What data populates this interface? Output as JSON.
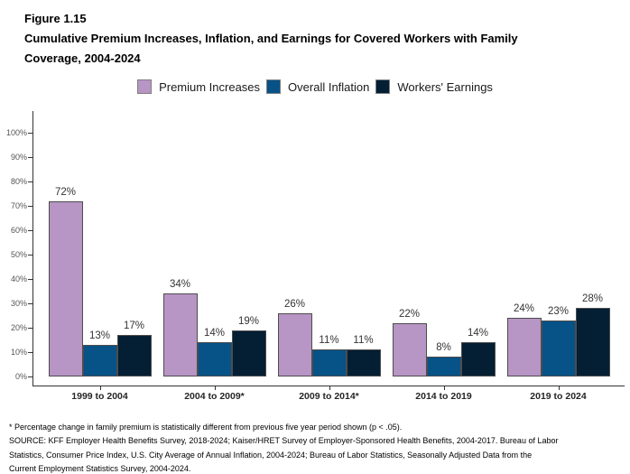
{
  "figure": {
    "label": "Figure 1.15",
    "title_line1": "Cumulative Premium Increases, Inflation, and Earnings for Covered Workers with Family",
    "title_line2": "Coverage, 2004-2024"
  },
  "legend": {
    "items": [
      {
        "label": "Premium Increases",
        "color": "#B795C4"
      },
      {
        "label": "Overall Inflation",
        "color": "#075287"
      },
      {
        "label": "Workers' Earnings",
        "color": "#041E33"
      }
    ]
  },
  "chart_data": {
    "type": "bar",
    "title": "Cumulative Premium Increases, Inflation, and Earnings for Covered Workers with Family Coverage, 2004-2024",
    "categories": [
      "1999 to 2004",
      "2004 to 2009*",
      "2009 to 2014*",
      "2014 to 2019",
      "2019 to 2024"
    ],
    "series": [
      {
        "name": "Premium Increases",
        "color": "#B795C4",
        "values": [
          72,
          34,
          26,
          22,
          24
        ]
      },
      {
        "name": "Overall Inflation",
        "color": "#075287",
        "values": [
          13,
          14,
          11,
          8,
          23
        ]
      },
      {
        "name": "Workers' Earnings",
        "color": "#041E33",
        "values": [
          17,
          19,
          11,
          14,
          28
        ]
      }
    ],
    "data_label_suffix": "%",
    "xlabel": "",
    "ylabel": "",
    "ylim": [
      0,
      100
    ],
    "yticks": [
      0,
      10,
      20,
      30,
      40,
      50,
      60,
      70,
      80,
      90,
      100
    ],
    "ytick_suffix": "%",
    "grid": false,
    "legend_position": "top",
    "data_labels": true
  },
  "footnotes": {
    "note": "* Percentage change in family premium is statistically different from previous five year period shown (p < .05).",
    "source_lines": [
      "SOURCE: KFF Employer Health Benefits Survey, 2018-2024; Kaiser/HRET Survey of Employer-Sponsored Health Benefits, 2004-2017. Bureau of Labor",
      "Statistics, Consumer Price Index, U.S. City Average of Annual Inflation, 2004-2024; Bureau of Labor Statistics, Seasonally Adjusted Data from the",
      "Current Employment Statistics Survey, 2004-2024."
    ]
  }
}
